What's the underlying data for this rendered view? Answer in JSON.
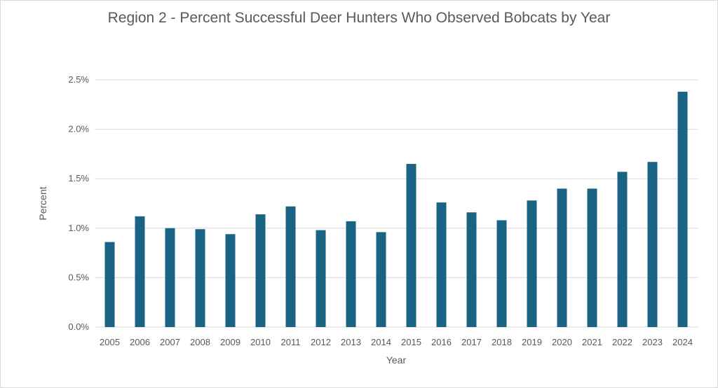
{
  "chart_data": {
    "type": "bar",
    "title": "Region 2 - Percent Successful Deer Hunters Who Observed Bobcats by Year",
    "xlabel": "Year",
    "ylabel": "Percent",
    "categories": [
      "2005",
      "2006",
      "2007",
      "2008",
      "2009",
      "2010",
      "2011",
      "2012",
      "2013",
      "2014",
      "2015",
      "2016",
      "2017",
      "2018",
      "2019",
      "2020",
      "2021",
      "2022",
      "2023",
      "2024"
    ],
    "values": [
      0.86,
      1.12,
      1.0,
      0.99,
      0.94,
      1.14,
      1.22,
      0.98,
      1.07,
      0.96,
      1.65,
      1.26,
      1.16,
      1.08,
      1.28,
      1.4,
      1.4,
      1.57,
      1.67,
      2.38
    ],
    "y_unit": "%",
    "ylim": [
      0,
      2.5
    ],
    "yticks": [
      "0.0%",
      "0.5%",
      "1.0%",
      "1.5%",
      "2.0%",
      "2.5%"
    ],
    "grid": true,
    "legend": "none",
    "bar_color": "#1A6384",
    "grid_color": "#d9d9d9"
  }
}
